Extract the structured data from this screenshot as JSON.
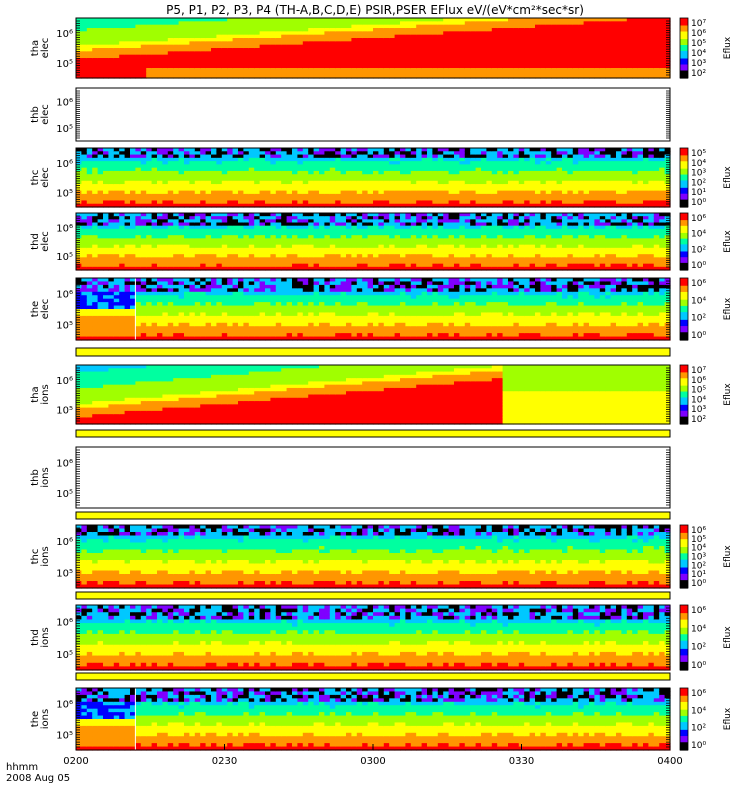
{
  "chart_data": {
    "type": "heatmap",
    "title": "P5, P1, P2, P3, P4 (TH-A,B,C,D,E) PSIR,PSER EFlux eV/(eV*cm²*sec*sr)",
    "x_ticks": [
      "0200",
      "0230",
      "0300",
      "0330",
      "0400"
    ],
    "x_range": [
      "02:00",
      "04:00"
    ],
    "x_corner_label": "hhmm",
    "date_label": "2008 Aug 05",
    "colorbar_label": "Eflux",
    "colormap": [
      "#000000",
      "#7f00ff",
      "#0000ff",
      "#00c8ff",
      "#00ffa0",
      "#a0ff00",
      "#ffff00",
      "#ff9600",
      "#ff0000"
    ],
    "panels": [
      {
        "probe": "tha",
        "species": "elec",
        "ylabel": "tha\nelec",
        "scale": "log",
        "y_ticks": [
          "10⁶",
          "10⁵"
        ],
        "colorbar_ticks": [
          "10⁷",
          "10⁶",
          "10⁵",
          "10⁴",
          "10³",
          "10²"
        ],
        "has_data": true
      },
      {
        "probe": "thb",
        "species": "elec",
        "ylabel": "thb\nelec",
        "scale": "log",
        "y_ticks": [
          "10⁶",
          "10⁵"
        ],
        "colorbar_ticks": [],
        "has_data": false
      },
      {
        "probe": "thc",
        "species": "elec",
        "ylabel": "thc\nelec",
        "scale": "log",
        "y_ticks": [
          "10⁶",
          "10⁵"
        ],
        "colorbar_ticks": [
          "10⁵",
          "10⁴",
          "10³",
          "10²",
          "10¹",
          "10⁰"
        ],
        "has_data": true
      },
      {
        "probe": "thd",
        "species": "elec",
        "ylabel": "thd\nelec",
        "scale": "log",
        "y_ticks": [
          "10⁶",
          "10⁵"
        ],
        "colorbar_ticks": [
          "10⁶",
          "10⁴",
          "10²",
          "10⁰"
        ],
        "has_data": true
      },
      {
        "probe": "the",
        "species": "elec",
        "ylabel": "the\nelec",
        "scale": "log",
        "y_ticks": [
          "10⁶",
          "10⁵"
        ],
        "colorbar_ticks": [
          "10⁶",
          "10⁴",
          "10²",
          "10⁰"
        ],
        "has_data": true
      },
      {
        "probe": "tha",
        "species": "ions",
        "ylabel": "tha\nions",
        "scale": "log",
        "y_ticks": [
          "10⁶",
          "10⁵"
        ],
        "colorbar_ticks": [
          "10⁷",
          "10⁶",
          "10⁵",
          "10⁴",
          "10³",
          "10²"
        ],
        "has_data": true
      },
      {
        "probe": "thb",
        "species": "ions",
        "ylabel": "thb\nions",
        "scale": "log",
        "y_ticks": [
          "10⁶",
          "10⁵"
        ],
        "colorbar_ticks": [],
        "has_data": false
      },
      {
        "probe": "thc",
        "species": "ions",
        "ylabel": "thc\nions",
        "scale": "log",
        "y_ticks": [
          "10⁶",
          "10⁵"
        ],
        "colorbar_ticks": [
          "10⁶",
          "10⁵",
          "10⁴",
          "10³",
          "10²",
          "10¹",
          "10⁰"
        ],
        "has_data": true
      },
      {
        "probe": "thd",
        "species": "ions",
        "ylabel": "thd\nions",
        "scale": "log",
        "y_ticks": [
          "10⁶",
          "10⁵"
        ],
        "colorbar_ticks": [
          "10⁶",
          "10⁴",
          "10²",
          "10⁰"
        ],
        "has_data": true
      },
      {
        "probe": "the",
        "species": "ions",
        "ylabel": "the\nions",
        "scale": "log",
        "y_ticks": [
          "10⁶",
          "10⁵"
        ],
        "colorbar_ticks": [
          "10⁶",
          "10⁴",
          "10²",
          "10⁰"
        ],
        "has_data": true
      }
    ]
  }
}
